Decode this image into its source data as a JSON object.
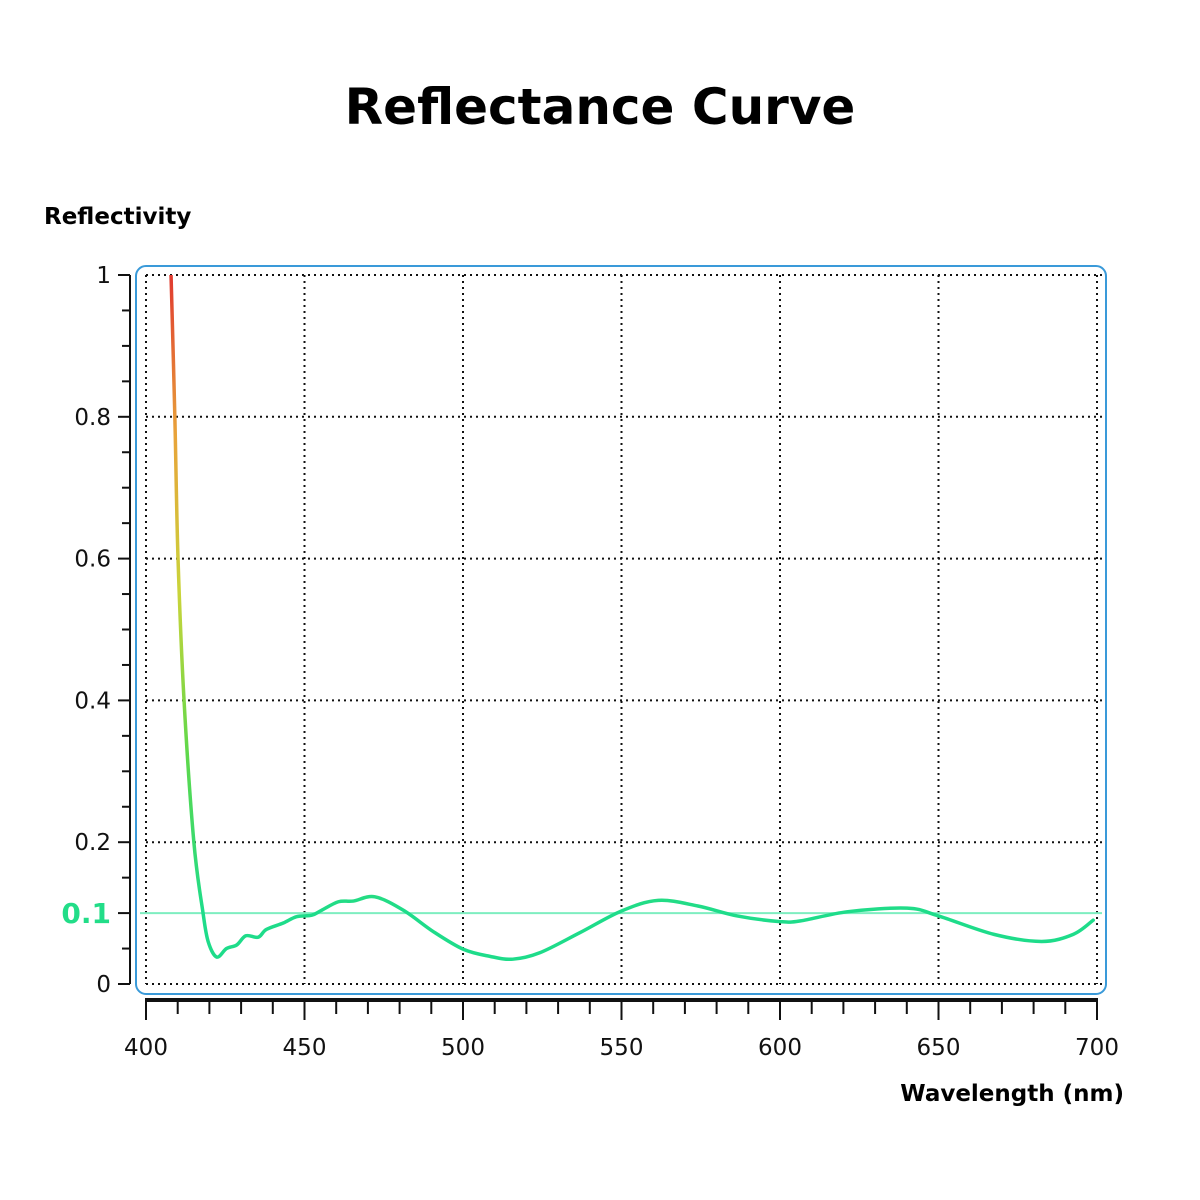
{
  "chart_data": {
    "type": "line",
    "title": "Reflectance Curve",
    "xlabel": "Wavelength (nm)",
    "ylabel": "Reflectivity",
    "xlim": [
      400,
      700
    ],
    "ylim": [
      0,
      1
    ],
    "xticks": [
      "400",
      "450",
      "500",
      "550",
      "600",
      "650",
      "700"
    ],
    "yticks": [
      {
        "v": 0,
        "label": "0"
      },
      {
        "v": 0.2,
        "label": "0.2"
      },
      {
        "v": 0.4,
        "label": "0.4"
      },
      {
        "v": 0.6,
        "label": "0.6"
      },
      {
        "v": 0.8,
        "label": "0.8"
      },
      {
        "v": 1,
        "label": "1"
      }
    ],
    "grid": true,
    "reference_line": {
      "value": 0.1,
      "label": "0.1",
      "color": "#7eeec0",
      "label_color": "#22dd88"
    },
    "frame_color": "#3a9ad9",
    "series": [
      {
        "gradient": [
          "#e0392f",
          "#e8a33a",
          "#c9d43a",
          "#5fd84a",
          "#1edc8a"
        ],
        "x": [
          407.9,
          409.1,
          410.1,
          412.0,
          415.1,
          418.0,
          419.6,
          422.3,
          425.4,
          428.6,
          431.5,
          435.4,
          438.0,
          443.3,
          447.5,
          452.3,
          455.4,
          460.7,
          465.4,
          472.2,
          481.2,
          490.6,
          500.1,
          508.5,
          515.7,
          524.2,
          536.7,
          550.0,
          561.6,
          574.1,
          586.5,
          600.0,
          606.5,
          621.4,
          640.1,
          650.0,
          667.5,
          682.5,
          692.5,
          698.8
        ],
        "y": [
          1.0,
          0.8,
          0.6,
          0.4,
          0.2,
          0.1,
          0.06,
          0.038,
          0.05,
          0.055,
          0.068,
          0.066,
          0.077,
          0.086,
          0.095,
          0.097,
          0.104,
          0.116,
          0.117,
          0.123,
          0.104,
          0.074,
          0.049,
          0.039,
          0.035,
          0.044,
          0.072,
          0.103,
          0.118,
          0.11,
          0.096,
          0.088,
          0.089,
          0.102,
          0.107,
          0.096,
          0.07,
          0.06,
          0.07,
          0.09
        ]
      }
    ]
  }
}
